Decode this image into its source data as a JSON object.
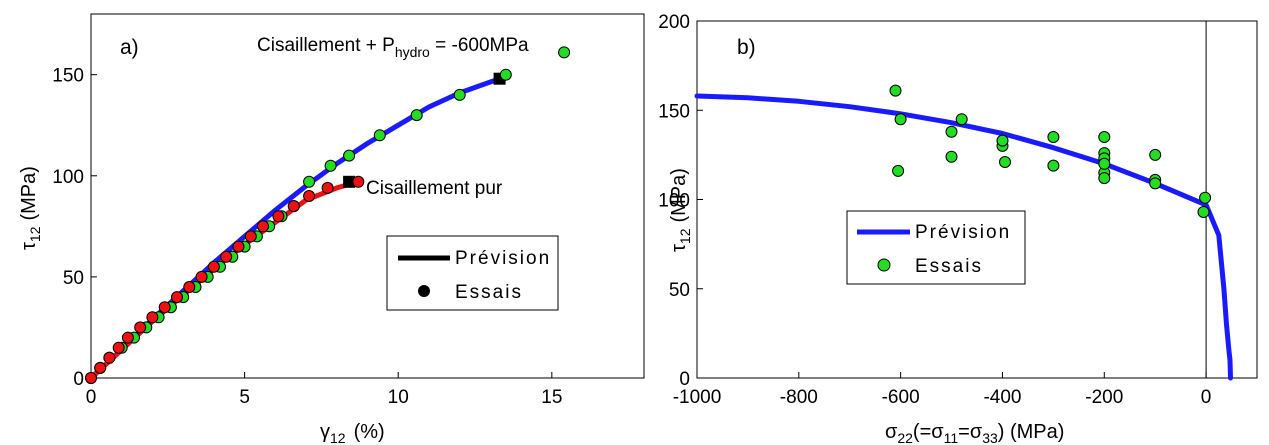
{
  "colors": {
    "blue": "#1a1aff",
    "red": "#ee1111",
    "green": "#22dd22",
    "black": "#000000"
  },
  "chart_data": [
    {
      "type": "line",
      "panel": "a)",
      "xlabel_sym": "γ",
      "xlabel_sub": "12",
      "xlabel_unit": "(%)",
      "ylabel_sym": "τ",
      "ylabel_sub": "12",
      "ylabel_unit": "(MPa)",
      "xlim": [
        0,
        18
      ],
      "ylim": [
        0,
        180
      ],
      "xticks": [
        0,
        5,
        10,
        15
      ],
      "yticks": [
        0,
        50,
        100,
        150
      ],
      "legend": {
        "placement": "lower-right",
        "line_label": "Prévision",
        "marker_label": "Essais"
      },
      "annotations": [
        {
          "prefix": "Cisaillement + P",
          "sub": "hydro",
          "suffix": " = -600MPa",
          "x": 13.3,
          "y": 150
        },
        {
          "text": "Cisaillement pur",
          "x": 8.6,
          "y": 97
        }
      ],
      "series": [
        {
          "color": "blue",
          "kind": "line",
          "x": [
            0,
            1,
            2,
            3,
            4,
            5,
            6,
            7,
            8,
            9,
            10,
            11,
            12,
            13.3
          ],
          "y": [
            0,
            14,
            29,
            43,
            57,
            70,
            83,
            95,
            106,
            116,
            125,
            134,
            141,
            148
          ]
        },
        {
          "color": "red",
          "kind": "line",
          "x": [
            0,
            1,
            2,
            3,
            4,
            5,
            6,
            7,
            8,
            8.7
          ],
          "y": [
            0,
            14,
            28,
            41,
            54,
            66,
            77,
            88,
            94,
            97
          ]
        },
        {
          "color": "black",
          "kind": "square-marker",
          "x": [
            13.3,
            8.4
          ],
          "y": [
            148,
            97
          ]
        },
        {
          "color": "green",
          "kind": "points",
          "x": [
            0,
            0.3,
            0.6,
            1.0,
            1.4,
            1.8,
            2.2,
            2.6,
            3.0,
            3.4,
            3.8,
            4.2,
            4.6,
            5.0,
            5.4,
            5.8,
            6.2,
            6.6,
            7.1,
            7.8,
            8.4,
            9.4,
            10.6,
            12.0,
            13.5,
            15.4
          ],
          "y": [
            0,
            5,
            10,
            15,
            20,
            25,
            30,
            35,
            40,
            45,
            50,
            55,
            60,
            65,
            70,
            75,
            80,
            85,
            97,
            105,
            110,
            120,
            130,
            140,
            150,
            161
          ]
        },
        {
          "color": "red",
          "kind": "points",
          "x": [
            0,
            0.3,
            0.6,
            0.9,
            1.2,
            1.6,
            2.0,
            2.4,
            2.8,
            3.2,
            3.6,
            4.0,
            4.4,
            4.8,
            5.2,
            5.6,
            6.1,
            6.6,
            7.1,
            7.7,
            8.7
          ],
          "y": [
            0,
            5,
            10,
            15,
            20,
            25,
            30,
            35,
            40,
            45,
            50,
            55,
            60,
            65,
            70,
            75,
            80,
            85,
            90,
            94,
            97
          ]
        }
      ]
    },
    {
      "type": "line",
      "panel": "b)",
      "xlabel_sym": "σ",
      "xlabel_sub": "22",
      "xlabel_mid1": "(=σ",
      "xlabel_sub2": "11",
      "xlabel_mid2": "=σ",
      "xlabel_sub3": "33",
      "xlabel_unit": ") (MPa)",
      "ylabel_sym": "τ",
      "ylabel_sub": "12",
      "ylabel_unit": "(MPa)",
      "xlim": [
        -1000,
        100
      ],
      "ylim": [
        0,
        200
      ],
      "xticks": [
        -1000,
        -800,
        -600,
        -400,
        -200,
        0
      ],
      "yticks": [
        0,
        50,
        100,
        150,
        200
      ],
      "legend": {
        "placement": "center-left",
        "line_label": "Prévision",
        "marker_label": "Essais"
      },
      "series": [
        {
          "color": "blue",
          "kind": "line",
          "x": [
            -1000,
            -900,
            -800,
            -700,
            -600,
            -500,
            -400,
            -300,
            -200,
            -100,
            0,
            25,
            35,
            40,
            45,
            47,
            48
          ],
          "y": [
            158,
            157,
            155,
            152,
            148,
            143,
            137,
            129,
            120,
            109,
            97,
            80,
            50,
            30,
            15,
            10,
            0
          ]
        },
        {
          "color": "green",
          "kind": "points",
          "x": [
            -610,
            -605,
            -600,
            -500,
            -500,
            -480,
            -400,
            -400,
            -395,
            -300,
            -300,
            -200,
            -200,
            -200,
            -200,
            -200,
            -200,
            -100,
            -100,
            -100,
            -5,
            -2
          ],
          "y": [
            161,
            116,
            145,
            138,
            124,
            145,
            130,
            133,
            121,
            135,
            119,
            135,
            126,
            123,
            115,
            112,
            120,
            125,
            111,
            109,
            93,
            101
          ]
        }
      ]
    }
  ]
}
